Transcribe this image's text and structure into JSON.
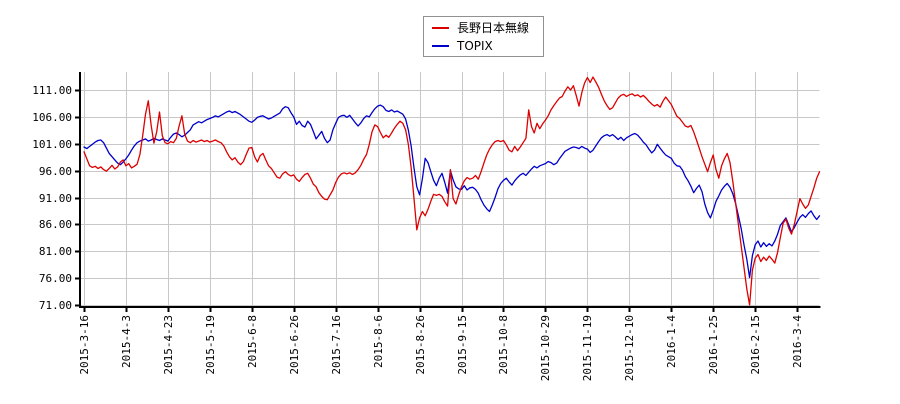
{
  "legend": {
    "items": [
      {
        "id": "nagano",
        "label": "長野日本無線",
        "color": "#dd0000"
      },
      {
        "id": "topix",
        "label": "TOPIX",
        "color": "#0000cc"
      }
    ]
  },
  "chart_data": {
    "type": "line",
    "title": "",
    "xlabel": "",
    "ylabel": "",
    "grid": true,
    "legend_position": "top-center",
    "colors": {
      "grid": "#c8c8c8",
      "axis": "#000000",
      "background": "#ffffff"
    },
    "y_ticks": [
      111,
      106,
      101,
      96,
      91,
      86,
      81,
      76,
      71
    ],
    "y_tick_labels": [
      "111.00",
      "106.00",
      "101.00",
      "96.00",
      "91.00",
      "86.00",
      "81.00",
      "76.00",
      "71.00"
    ],
    "ylim": [
      70.63,
      114.35
    ],
    "x_unit": "trading-day index, ticks every 15 days",
    "x_tick_idx": [
      0,
      15,
      30,
      45,
      60,
      75,
      90,
      105,
      120,
      135,
      150,
      165,
      180,
      195,
      210,
      225,
      240,
      255
    ],
    "x_tick_labels": [
      "2015-3-16",
      "2015-4-3",
      "2015-4-23",
      "2015-5-19",
      "2015-6-8",
      "2015-6-26",
      "2015-7-16",
      "2015-8-6",
      "2015-8-26",
      "2015-9-15",
      "2015-10-8",
      "2015-10-29",
      "2015-11-19",
      "2015-12-10",
      "2016-1-4",
      "2016-1-25",
      "2016-2-15",
      "2016-3-4"
    ],
    "series": [
      {
        "id": "nagano",
        "name": "長野日本無線",
        "color": "#dd0000",
        "values": [
          99.5,
          98.2,
          96.9,
          96.6,
          96.8,
          96.4,
          96.7,
          96.2,
          95.9,
          96.4,
          97.0,
          96.3,
          96.7,
          97.6,
          98.0,
          96.9,
          97.3,
          96.5,
          96.8,
          97.2,
          99.0,
          102.5,
          106.5,
          109.0,
          104.5,
          101.1,
          103.2,
          106.9,
          102.5,
          101.2,
          101.0,
          101.4,
          101.2,
          102.0,
          104.3,
          106.2,
          102.8,
          101.5,
          101.2,
          101.6,
          101.3,
          101.5,
          101.7,
          101.4,
          101.6,
          101.3,
          101.5,
          101.7,
          101.4,
          101.2,
          100.6,
          99.5,
          98.6,
          98.0,
          98.4,
          97.6,
          97.1,
          97.7,
          99.0,
          100.2,
          100.3,
          98.6,
          97.6,
          98.8,
          99.2,
          98.0,
          96.9,
          96.4,
          95.6,
          94.8,
          94.6,
          95.4,
          95.8,
          95.3,
          95.0,
          95.2,
          94.4,
          94.0,
          94.7,
          95.3,
          95.5,
          94.6,
          93.5,
          93.0,
          91.9,
          91.2,
          90.7,
          90.6,
          91.5,
          92.4,
          93.8,
          94.8,
          95.4,
          95.6,
          95.4,
          95.6,
          95.3,
          95.6,
          96.2,
          97.0,
          98.1,
          99.0,
          100.9,
          103.2,
          104.5,
          104.2,
          103.1,
          102.1,
          102.6,
          102.2,
          103.0,
          103.9,
          104.6,
          105.2,
          104.8,
          103.6,
          100.8,
          96.5,
          90.8,
          85.0,
          87.2,
          88.4,
          87.6,
          88.8,
          90.3,
          91.6,
          91.4,
          91.6,
          91.2,
          90.2,
          89.4,
          96.2,
          90.8,
          89.8,
          91.5,
          93.0,
          94.1,
          94.7,
          94.4,
          94.6,
          95.1,
          94.4,
          95.8,
          97.4,
          98.9,
          100.0,
          100.8,
          101.4,
          101.6,
          101.4,
          101.6,
          100.8,
          99.8,
          99.5,
          100.5,
          99.7,
          100.4,
          101.2,
          102.0,
          107.3,
          104.2,
          103.0,
          104.8,
          103.8,
          104.7,
          105.4,
          106.2,
          107.3,
          108.1,
          108.8,
          109.5,
          109.8,
          110.8,
          111.6,
          111.0,
          111.8,
          110.0,
          108.0,
          110.5,
          112.3,
          113.3,
          112.4,
          113.4,
          112.5,
          111.5,
          110.2,
          109.0,
          108.1,
          107.4,
          107.7,
          108.6,
          109.5,
          110.0,
          110.2,
          109.8,
          110.1,
          110.3,
          109.9,
          110.1,
          109.7,
          110.0,
          109.5,
          108.9,
          108.4,
          108.0,
          108.3,
          107.8,
          108.9,
          109.7,
          109.0,
          108.3,
          107.2,
          106.1,
          105.7,
          105.0,
          104.3,
          104.1,
          104.4,
          103.2,
          101.7,
          100.2,
          98.6,
          97.2,
          95.8,
          97.5,
          98.9,
          96.2,
          94.6,
          96.9,
          98.2,
          99.2,
          97.5,
          94.0,
          90.0,
          86.0,
          82.0,
          78.0,
          74.0,
          71.0,
          77.5,
          79.7,
          80.4,
          79.1,
          79.9,
          79.3,
          80.1,
          79.5,
          78.8,
          80.8,
          83.5,
          86.2,
          87.0,
          85.3,
          84.2,
          86.0,
          88.4,
          90.8,
          89.8,
          89.0,
          89.6,
          91.2,
          92.8,
          94.6,
          95.8
        ]
      },
      {
        "id": "topix",
        "name": "TOPIX",
        "color": "#0000cc",
        "values": [
          100.4,
          100.1,
          100.5,
          100.9,
          101.3,
          101.6,
          101.7,
          101.2,
          100.2,
          99.2,
          98.6,
          98.0,
          97.4,
          97.1,
          97.6,
          98.2,
          98.9,
          99.8,
          100.6,
          101.2,
          101.5,
          101.7,
          101.9,
          101.5,
          101.7,
          102.0,
          101.8,
          101.6,
          101.9,
          101.7,
          101.5,
          102.2,
          102.8,
          103.0,
          102.7,
          102.3,
          102.6,
          103.1,
          103.6,
          104.5,
          104.8,
          105.1,
          104.9,
          105.2,
          105.5,
          105.7,
          105.9,
          106.2,
          106.0,
          106.3,
          106.6,
          106.9,
          107.1,
          106.8,
          107.0,
          106.7,
          106.4,
          106.0,
          105.6,
          105.2,
          105.0,
          105.4,
          105.9,
          106.1,
          106.2,
          105.9,
          105.6,
          105.8,
          106.1,
          106.4,
          106.7,
          107.5,
          107.9,
          107.7,
          106.8,
          106.0,
          104.6,
          105.2,
          104.4,
          104.1,
          105.2,
          104.6,
          103.3,
          101.9,
          102.6,
          103.3,
          102.0,
          101.2,
          101.7,
          103.6,
          104.8,
          105.9,
          106.2,
          106.3,
          105.9,
          106.3,
          105.6,
          104.9,
          104.3,
          104.9,
          105.7,
          106.2,
          106.0,
          106.8,
          107.5,
          108.0,
          108.2,
          107.9,
          107.2,
          107.0,
          107.3,
          106.9,
          107.1,
          106.8,
          106.5,
          105.6,
          103.5,
          100.5,
          96.5,
          93.0,
          91.5,
          94.5,
          98.3,
          97.5,
          95.8,
          94.2,
          93.2,
          94.6,
          95.5,
          93.8,
          91.8,
          96.0,
          94.3,
          93.0,
          92.6,
          92.5,
          93.2,
          92.4,
          92.8,
          92.9,
          92.5,
          91.8,
          90.6,
          89.6,
          88.9,
          88.4,
          89.6,
          91.0,
          92.6,
          93.6,
          94.2,
          94.6,
          93.9,
          93.3,
          94.1,
          94.7,
          95.2,
          95.5,
          95.1,
          95.7,
          96.3,
          96.8,
          96.5,
          96.9,
          97.1,
          97.3,
          97.7,
          97.5,
          97.1,
          97.4,
          98.2,
          98.9,
          99.6,
          99.9,
          100.2,
          100.4,
          100.3,
          100.1,
          100.5,
          100.2,
          100.0,
          99.4,
          99.8,
          100.6,
          101.4,
          102.1,
          102.5,
          102.7,
          102.4,
          102.7,
          102.3,
          101.8,
          102.2,
          101.6,
          102.1,
          102.4,
          102.7,
          102.9,
          102.6,
          102.0,
          101.3,
          100.8,
          100.0,
          99.3,
          99.8,
          100.9,
          100.2,
          99.5,
          98.9,
          98.6,
          98.3,
          97.4,
          96.9,
          96.8,
          96.1,
          94.9,
          94.1,
          93.1,
          91.9,
          92.7,
          93.3,
          92.1,
          89.8,
          88.2,
          87.2,
          88.6,
          90.3,
          91.3,
          92.4,
          93.1,
          93.6,
          92.9,
          91.7,
          89.9,
          87.6,
          85.2,
          82.2,
          79.5,
          76.1,
          80.2,
          82.2,
          82.9,
          81.8,
          82.6,
          81.9,
          82.4,
          82.0,
          82.9,
          84.2,
          85.8,
          86.5,
          87.2,
          85.9,
          84.6,
          85.4,
          86.4,
          87.3,
          87.8,
          87.3,
          88.0,
          88.5,
          87.6,
          86.9,
          87.6
        ]
      }
    ]
  }
}
